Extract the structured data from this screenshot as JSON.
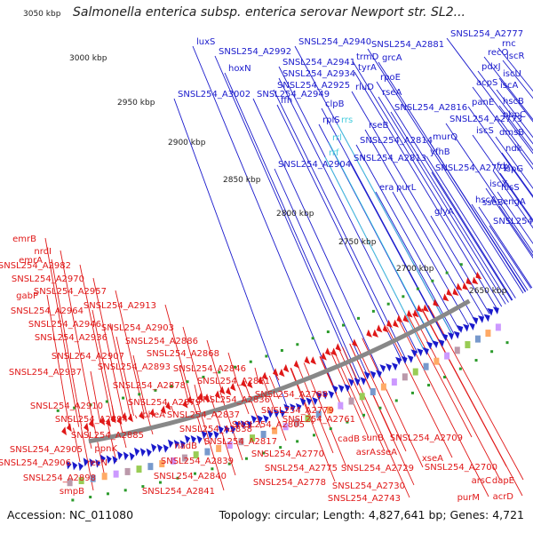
{
  "title": "Salmonella enterica subsp. enterica serovar Newport str. SL2...",
  "footer": {
    "accession": "Accession: NC_011080",
    "topology": "Topology: circular; Length: 4,827,641 bp; Genes: 4,721"
  },
  "colors": {
    "forward": "#1a1acc",
    "reverse": "#e01818",
    "rna": "#44ccdd",
    "backbone": "#888888",
    "tick_dot": "#2a9a2a"
  },
  "ticks": [
    "3050 kbp",
    "3000 kbp",
    "2950 kbp",
    "2900 kbp",
    "2850 kbp",
    "2800 kbp",
    "2750 kbp",
    "2700 kbp",
    "2650 kbp"
  ],
  "labels_blue": [
    {
      "text": "luxS"
    },
    {
      "text": "SNSL254_A2992"
    },
    {
      "text": "hoxN"
    },
    {
      "text": "SNSL254_A3002"
    },
    {
      "text": "SNSL254_A2940"
    },
    {
      "text": "SNSL254_A2941"
    },
    {
      "text": "SNSL254_A2934"
    },
    {
      "text": "SNSL254_A2925"
    },
    {
      "text": "SNSL254_A2949"
    },
    {
      "text": "trmD"
    },
    {
      "text": "tyrA"
    },
    {
      "text": "rluD"
    },
    {
      "text": "ffh"
    },
    {
      "text": "clpB"
    },
    {
      "text": "rplS"
    },
    {
      "text": "SNSL254_A2904"
    },
    {
      "text": "SNSL254_A2881"
    },
    {
      "text": "grcA"
    },
    {
      "text": "rpoE"
    },
    {
      "text": "rseA"
    },
    {
      "text": "rseB"
    },
    {
      "text": "SNSL254_A2816"
    },
    {
      "text": "SNSL254_A2814"
    },
    {
      "text": "SNSL254_A2813"
    },
    {
      "text": "SNSL254_A2777"
    },
    {
      "text": "rnc"
    },
    {
      "text": "recO"
    },
    {
      "text": "pdxJ"
    },
    {
      "text": "acpS"
    },
    {
      "text": "panE"
    },
    {
      "text": "SNSL254_A2773"
    },
    {
      "text": "murQ"
    },
    {
      "text": "yfhB"
    },
    {
      "text": "SNSL254_A2771"
    },
    {
      "text": "purL"
    },
    {
      "text": "era"
    },
    {
      "text": "glyA"
    },
    {
      "text": "iscR"
    },
    {
      "text": "iscU"
    },
    {
      "text": "iscA"
    },
    {
      "text": "hscB"
    },
    {
      "text": "pbpC"
    },
    {
      "text": "dmsB"
    },
    {
      "text": "iscS"
    },
    {
      "text": "ndk"
    },
    {
      "text": "fdx"
    },
    {
      "text": "ispG"
    },
    {
      "text": "iscX"
    },
    {
      "text": "hisS"
    },
    {
      "text": "hscA"
    },
    {
      "text": "sseB"
    },
    {
      "text": "engA"
    },
    {
      "text": "SNSL254_A2712"
    }
  ],
  "labels_cyan": [
    {
      "text": "rrs"
    },
    {
      "text": "rrl"
    },
    {
      "text": "rrf"
    }
  ],
  "labels_red": [
    {
      "text": "emrB"
    },
    {
      "text": "nrdI"
    },
    {
      "text": "emrA"
    },
    {
      "text": "SNSL254_A2982"
    },
    {
      "text": "SNSL254_A2970"
    },
    {
      "text": "gabP"
    },
    {
      "text": "SNSL254_A2957"
    },
    {
      "text": "SNSL254_A2964"
    },
    {
      "text": "SNSL254_A2913"
    },
    {
      "text": "SNSL254_A2946"
    },
    {
      "text": "SNSL254_A2903"
    },
    {
      "text": "SNSL254_A2936"
    },
    {
      "text": "SNSL254_A2886"
    },
    {
      "text": "SNSL254_A2907"
    },
    {
      "text": "SNSL254_A2868"
    },
    {
      "text": "SNSL254_A2893"
    },
    {
      "text": "SNSL254_A2846"
    },
    {
      "text": "SNSL254_A2937"
    },
    {
      "text": "SNSL254_A2878"
    },
    {
      "text": "SNSL254_A2821"
    },
    {
      "text": "SNSL254_A2836"
    },
    {
      "text": "SNSL254_A2879"
    },
    {
      "text": "SNSL254_A2910"
    },
    {
      "text": "pheA"
    },
    {
      "text": "SNSL254_A2837"
    },
    {
      "text": "SNSL254_A2894"
    },
    {
      "text": "SNSL254_A2838"
    },
    {
      "text": "SNSL254_A2885"
    },
    {
      "text": "nadB"
    },
    {
      "text": "SNSL254_A2817"
    },
    {
      "text": "SNSL254_A2805"
    },
    {
      "text": "SNSL254_A2788"
    },
    {
      "text": "SNSL254_A2779"
    },
    {
      "text": "SNSL254_A2761"
    },
    {
      "text": "cadB"
    },
    {
      "text": "sunB"
    },
    {
      "text": "SNSL254_A2709"
    },
    {
      "text": "asrA"
    },
    {
      "text": "sseA"
    },
    {
      "text": "SNSL254_A2905"
    },
    {
      "text": "ppnK"
    },
    {
      "text": "SNSL254_A2770"
    },
    {
      "text": "SNSL254_A2906"
    },
    {
      "text": "recN"
    },
    {
      "text": "SNSL254_A2775"
    },
    {
      "text": "SNSL254_A2729"
    },
    {
      "text": "SNSL254_A2839"
    },
    {
      "text": "SNSL254_A2898"
    },
    {
      "text": "SNSL254_A2840"
    },
    {
      "text": "SNSL254_A2778"
    },
    {
      "text": "SNSL254_A2730"
    },
    {
      "text": "smpB"
    },
    {
      "text": "SNSL254_A2841"
    },
    {
      "text": "SNSL254_A2743"
    },
    {
      "text": "xseA"
    },
    {
      "text": "SNSL254_A2700"
    },
    {
      "text": "dapE"
    },
    {
      "text": "arsC"
    },
    {
      "text": "purM"
    },
    {
      "text": "acrD"
    }
  ]
}
